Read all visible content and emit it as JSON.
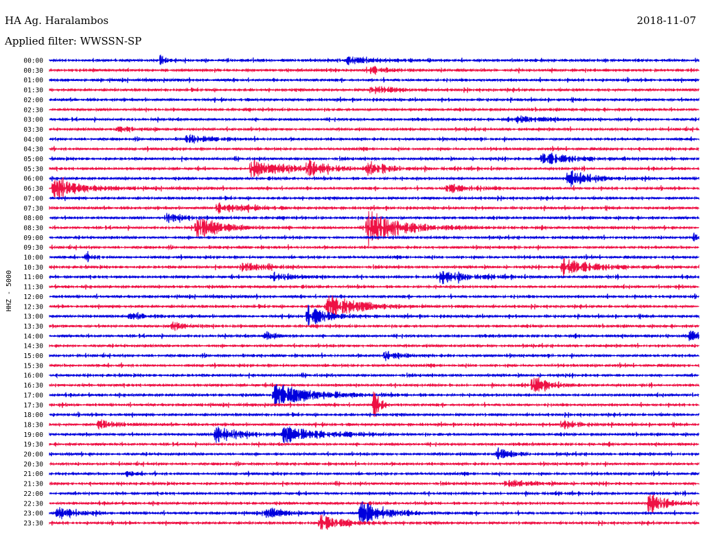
{
  "header": {
    "station": "HA Ag. Haralambos",
    "date": "2018-11-07",
    "filter": "Applied filter: WWSSN-SP"
  },
  "chart_data": {
    "type": "line",
    "title": "HA Ag. Haralambos",
    "ylabel": "HHZ - 5000",
    "rows": [
      "00:00",
      "00:30",
      "01:00",
      "01:30",
      "02:00",
      "02:30",
      "03:00",
      "03:30",
      "04:00",
      "04:30",
      "05:00",
      "05:30",
      "06:00",
      "06:30",
      "07:00",
      "07:30",
      "08:00",
      "08:30",
      "09:00",
      "09:30",
      "10:00",
      "10:30",
      "11:00",
      "11:30",
      "12:00",
      "12:30",
      "13:00",
      "13:30",
      "14:00",
      "14:30",
      "15:00",
      "15:30",
      "16:00",
      "16:30",
      "17:00",
      "17:30",
      "18:00",
      "18:30",
      "19:00",
      "19:30",
      "20:00",
      "20:30",
      "21:00",
      "21:30",
      "22:00",
      "22:30",
      "23:00",
      "23:30"
    ],
    "series_colors": [
      "#0000dd",
      "#ee1144"
    ],
    "color_pattern": "alternating blue/red by row starting blue at 00:00",
    "x_unit": "minutes within row",
    "xlim": [
      0,
      30
    ],
    "events": [
      {
        "row": 0,
        "t": 5.0,
        "amp": 0.5,
        "dur": 0.6
      },
      {
        "row": 0,
        "t": 13.7,
        "amp": 0.3,
        "dur": 2.5
      },
      {
        "row": 1,
        "t": 14.5,
        "amp": 0.35,
        "dur": 2.0
      },
      {
        "row": 3,
        "t": 14.8,
        "amp": 0.35,
        "dur": 2.0
      },
      {
        "row": 6,
        "t": 21.5,
        "amp": 0.35,
        "dur": 2.0
      },
      {
        "row": 7,
        "t": 3.0,
        "amp": 0.25,
        "dur": 2.0
      },
      {
        "row": 8,
        "t": 6.3,
        "amp": 0.35,
        "dur": 2.0
      },
      {
        "row": 10,
        "t": 22.7,
        "amp": 0.5,
        "dur": 3.0
      },
      {
        "row": 11,
        "t": 9.2,
        "amp": 0.65,
        "dur": 3.5
      },
      {
        "row": 11,
        "t": 11.8,
        "amp": 0.55,
        "dur": 2.0
      },
      {
        "row": 11,
        "t": 14.6,
        "amp": 0.55,
        "dur": 2.0
      },
      {
        "row": 12,
        "t": 23.9,
        "amp": 0.7,
        "dur": 2.0
      },
      {
        "row": 13,
        "t": 0.1,
        "amp": 0.9,
        "dur": 2.5
      },
      {
        "row": 13,
        "t": 18.3,
        "amp": 0.45,
        "dur": 2.0
      },
      {
        "row": 15,
        "t": 7.7,
        "amp": 0.45,
        "dur": 2.5
      },
      {
        "row": 16,
        "t": 5.3,
        "amp": 0.35,
        "dur": 2.0
      },
      {
        "row": 17,
        "t": 6.7,
        "amp": 0.9,
        "dur": 2.5
      },
      {
        "row": 17,
        "t": 14.6,
        "amp": 1.4,
        "dur": 3.0
      },
      {
        "row": 18,
        "t": 29.6,
        "amp": 0.55,
        "dur": 0.5
      },
      {
        "row": 20,
        "t": 1.6,
        "amp": 0.35,
        "dur": 0.8
      },
      {
        "row": 21,
        "t": 8.8,
        "amp": 0.35,
        "dur": 2.0
      },
      {
        "row": 21,
        "t": 23.6,
        "amp": 0.6,
        "dur": 3.5
      },
      {
        "row": 22,
        "t": 10.2,
        "amp": 0.35,
        "dur": 2.0
      },
      {
        "row": 22,
        "t": 17.8,
        "amp": 0.6,
        "dur": 2.5
      },
      {
        "row": 25,
        "t": 12.7,
        "amp": 1.0,
        "dur": 3.0
      },
      {
        "row": 26,
        "t": 11.8,
        "amp": 0.8,
        "dur": 2.0
      },
      {
        "row": 26,
        "t": 3.6,
        "amp": 0.3,
        "dur": 1.5
      },
      {
        "row": 27,
        "t": 5.6,
        "amp": 0.35,
        "dur": 1.5
      },
      {
        "row": 28,
        "t": 9.9,
        "amp": 0.4,
        "dur": 1.0
      },
      {
        "row": 28,
        "t": 29.5,
        "amp": 0.8,
        "dur": 0.5
      },
      {
        "row": 30,
        "t": 15.4,
        "amp": 0.35,
        "dur": 1.5
      },
      {
        "row": 33,
        "t": 22.2,
        "amp": 0.7,
        "dur": 1.5
      },
      {
        "row": 34,
        "t": 10.3,
        "amp": 0.9,
        "dur": 3.5
      },
      {
        "row": 35,
        "t": 14.9,
        "amp": 1.6,
        "dur": 0.6
      },
      {
        "row": 37,
        "t": 2.2,
        "amp": 0.4,
        "dur": 1.5
      },
      {
        "row": 37,
        "t": 23.6,
        "amp": 0.4,
        "dur": 1.5
      },
      {
        "row": 38,
        "t": 7.6,
        "amp": 0.8,
        "dur": 2.0
      },
      {
        "row": 38,
        "t": 10.7,
        "amp": 0.6,
        "dur": 3.5
      },
      {
        "row": 40,
        "t": 20.6,
        "amp": 0.45,
        "dur": 1.5
      },
      {
        "row": 42,
        "t": 3.5,
        "amp": 0.3,
        "dur": 0.6
      },
      {
        "row": 43,
        "t": 21.0,
        "amp": 0.35,
        "dur": 2.0
      },
      {
        "row": 45,
        "t": 27.6,
        "amp": 0.9,
        "dur": 1.5
      },
      {
        "row": 46,
        "t": 0.3,
        "amp": 0.6,
        "dur": 1.5
      },
      {
        "row": 46,
        "t": 9.9,
        "amp": 0.5,
        "dur": 1.5
      },
      {
        "row": 46,
        "t": 14.3,
        "amp": 0.9,
        "dur": 2.5
      },
      {
        "row": 47,
        "t": 12.4,
        "amp": 0.55,
        "dur": 2.5
      }
    ]
  }
}
